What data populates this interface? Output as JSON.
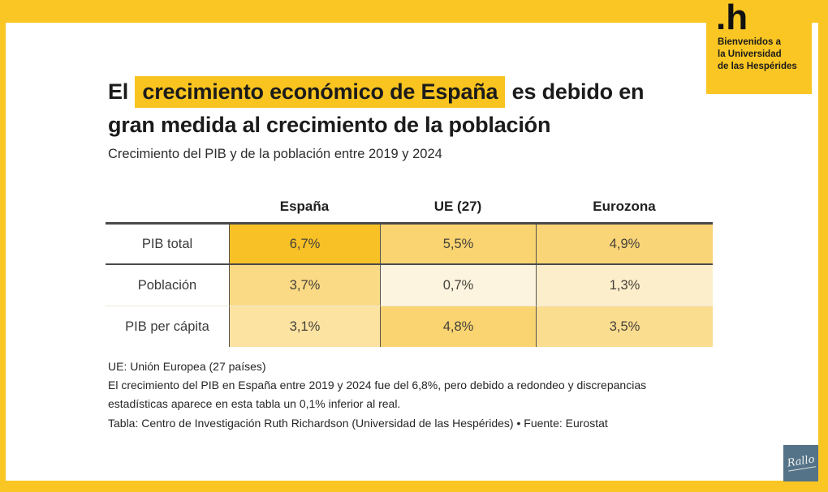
{
  "frame": {
    "brand_yellow": "#F9C623"
  },
  "badge": {
    "logo": ".h",
    "line1": "Bienvenidos a",
    "line2": "la Universidad",
    "line3": "de las Hespérides"
  },
  "title": {
    "prefix": "El ",
    "highlight": "crecimiento económico de España",
    "suffix": " es debido en",
    "line2": "gran medida al crecimiento de la población"
  },
  "subtitle": "Crecimiento del PIB y de la población entre 2019 y 2024",
  "chart_data": {
    "type": "table",
    "title": "El crecimiento económico de España es debido en gran medida al crecimiento de la población",
    "subtitle": "Crecimiento del PIB y de la población entre 2019 y 2024",
    "columns": [
      "España",
      "UE (27)",
      "Eurozona"
    ],
    "rows": [
      {
        "label": "PIB total",
        "values": [
          6.7,
          5.5,
          4.9
        ]
      },
      {
        "label": "Población",
        "values": [
          3.7,
          0.7,
          1.3
        ]
      },
      {
        "label": "PIB per cápita",
        "values": [
          3.1,
          4.8,
          3.5
        ]
      }
    ],
    "value_unit": "%",
    "value_format": "comma decimal (es-ES)",
    "color_encoding": "yellow heatmap — darker gold for higher values, pale cream for lower",
    "source": "Eurostat"
  },
  "table": {
    "col0": "",
    "col1": "España",
    "col2": "UE (27)",
    "col3": "Eurozona",
    "rows": [
      {
        "label": "PIB total",
        "values": [
          "6,7%",
          "5,5%",
          "4,9%"
        ],
        "colors": [
          "#F8C125",
          "#FAD471",
          "#FAD578"
        ]
      },
      {
        "label": "Población",
        "values": [
          "3,7%",
          "0,7%",
          "1,3%"
        ],
        "colors": [
          "#FBDA85",
          "#FDF4DF",
          "#FDEECB"
        ]
      },
      {
        "label": "PIB per cápita",
        "values": [
          "3,1%",
          "4,8%",
          "3,5%"
        ],
        "colors": [
          "#FCE3A1",
          "#FAD471",
          "#FBDD90"
        ]
      }
    ]
  },
  "notes": {
    "line1": "UE: Unión Europea (27 países)",
    "line2": "El crecimiento del PIB en España entre 2019 y 2024 fue del 6,8%, pero debido a redondeo y discrepancias",
    "line3": "estadísticas aparece en esta tabla un 0,1% inferior al real."
  },
  "credit": "Tabla: Centro de Investigación Ruth Richardson (Universidad de las Hespérides) • Fuente: Eurostat",
  "watermark": "Rallo"
}
